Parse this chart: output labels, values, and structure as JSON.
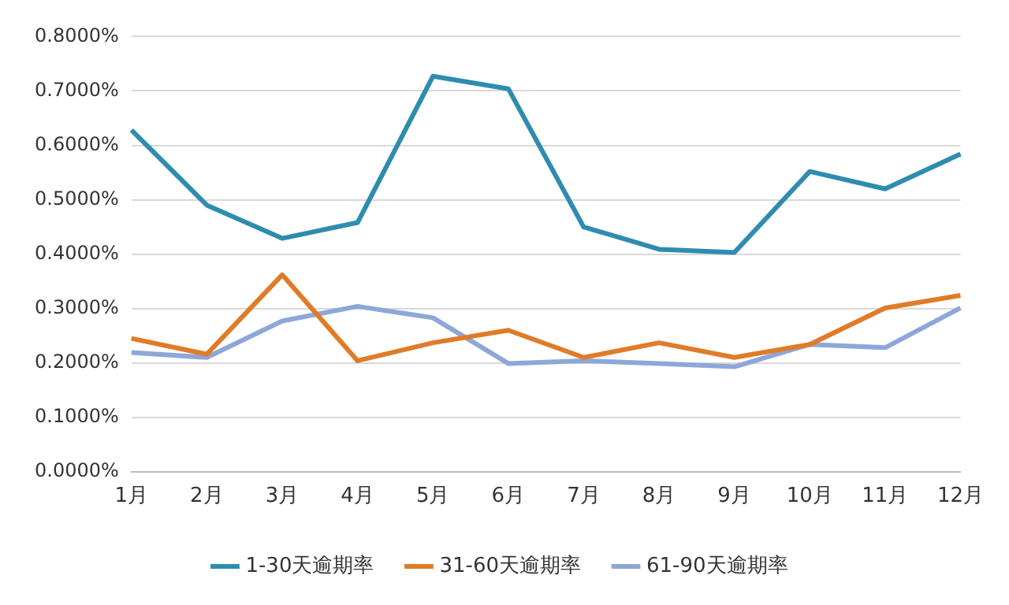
{
  "chart_data": {
    "type": "line",
    "categories": [
      "1月",
      "2月",
      "3月",
      "4月",
      "5月",
      "6月",
      "7月",
      "8月",
      "9月",
      "10月",
      "11月",
      "12月"
    ],
    "series": [
      {
        "name": "1-30天逾期率",
        "color": "#2e8cb0",
        "values": [
          0.628,
          0.49,
          0.429,
          0.458,
          0.727,
          0.704,
          0.45,
          0.409,
          0.403,
          0.552,
          0.52,
          0.584
        ]
      },
      {
        "name": "31-60天逾期率",
        "color": "#e07b28",
        "values": [
          0.245,
          0.216,
          0.362,
          0.204,
          0.237,
          0.26,
          0.21,
          0.237,
          0.21,
          0.234,
          0.301,
          0.324
        ]
      },
      {
        "name": "61-90天逾期率",
        "color": "#8ea7d9",
        "values": [
          0.219,
          0.21,
          0.277,
          0.304,
          0.283,
          0.199,
          0.204,
          0.199,
          0.193,
          0.234,
          0.228,
          0.301
        ]
      }
    ],
    "ylim": [
      0,
      0.8
    ],
    "yticks": [
      {
        "value": 0,
        "label": "0.0000%"
      },
      {
        "value": 0.1,
        "label": "0.1000%"
      },
      {
        "value": 0.2,
        "label": "0.2000%"
      },
      {
        "value": 0.3,
        "label": "0.3000%"
      },
      {
        "value": 0.4,
        "label": "0.4000%"
      },
      {
        "value": 0.5,
        "label": "0.5000%"
      },
      {
        "value": 0.6,
        "label": "0.6000%"
      },
      {
        "value": 0.7,
        "label": "0.7000%"
      },
      {
        "value": 0.8,
        "label": "0.8000%"
      }
    ],
    "grid": "y",
    "legend": "bottom",
    "marker": "none",
    "line_style": "solid"
  }
}
